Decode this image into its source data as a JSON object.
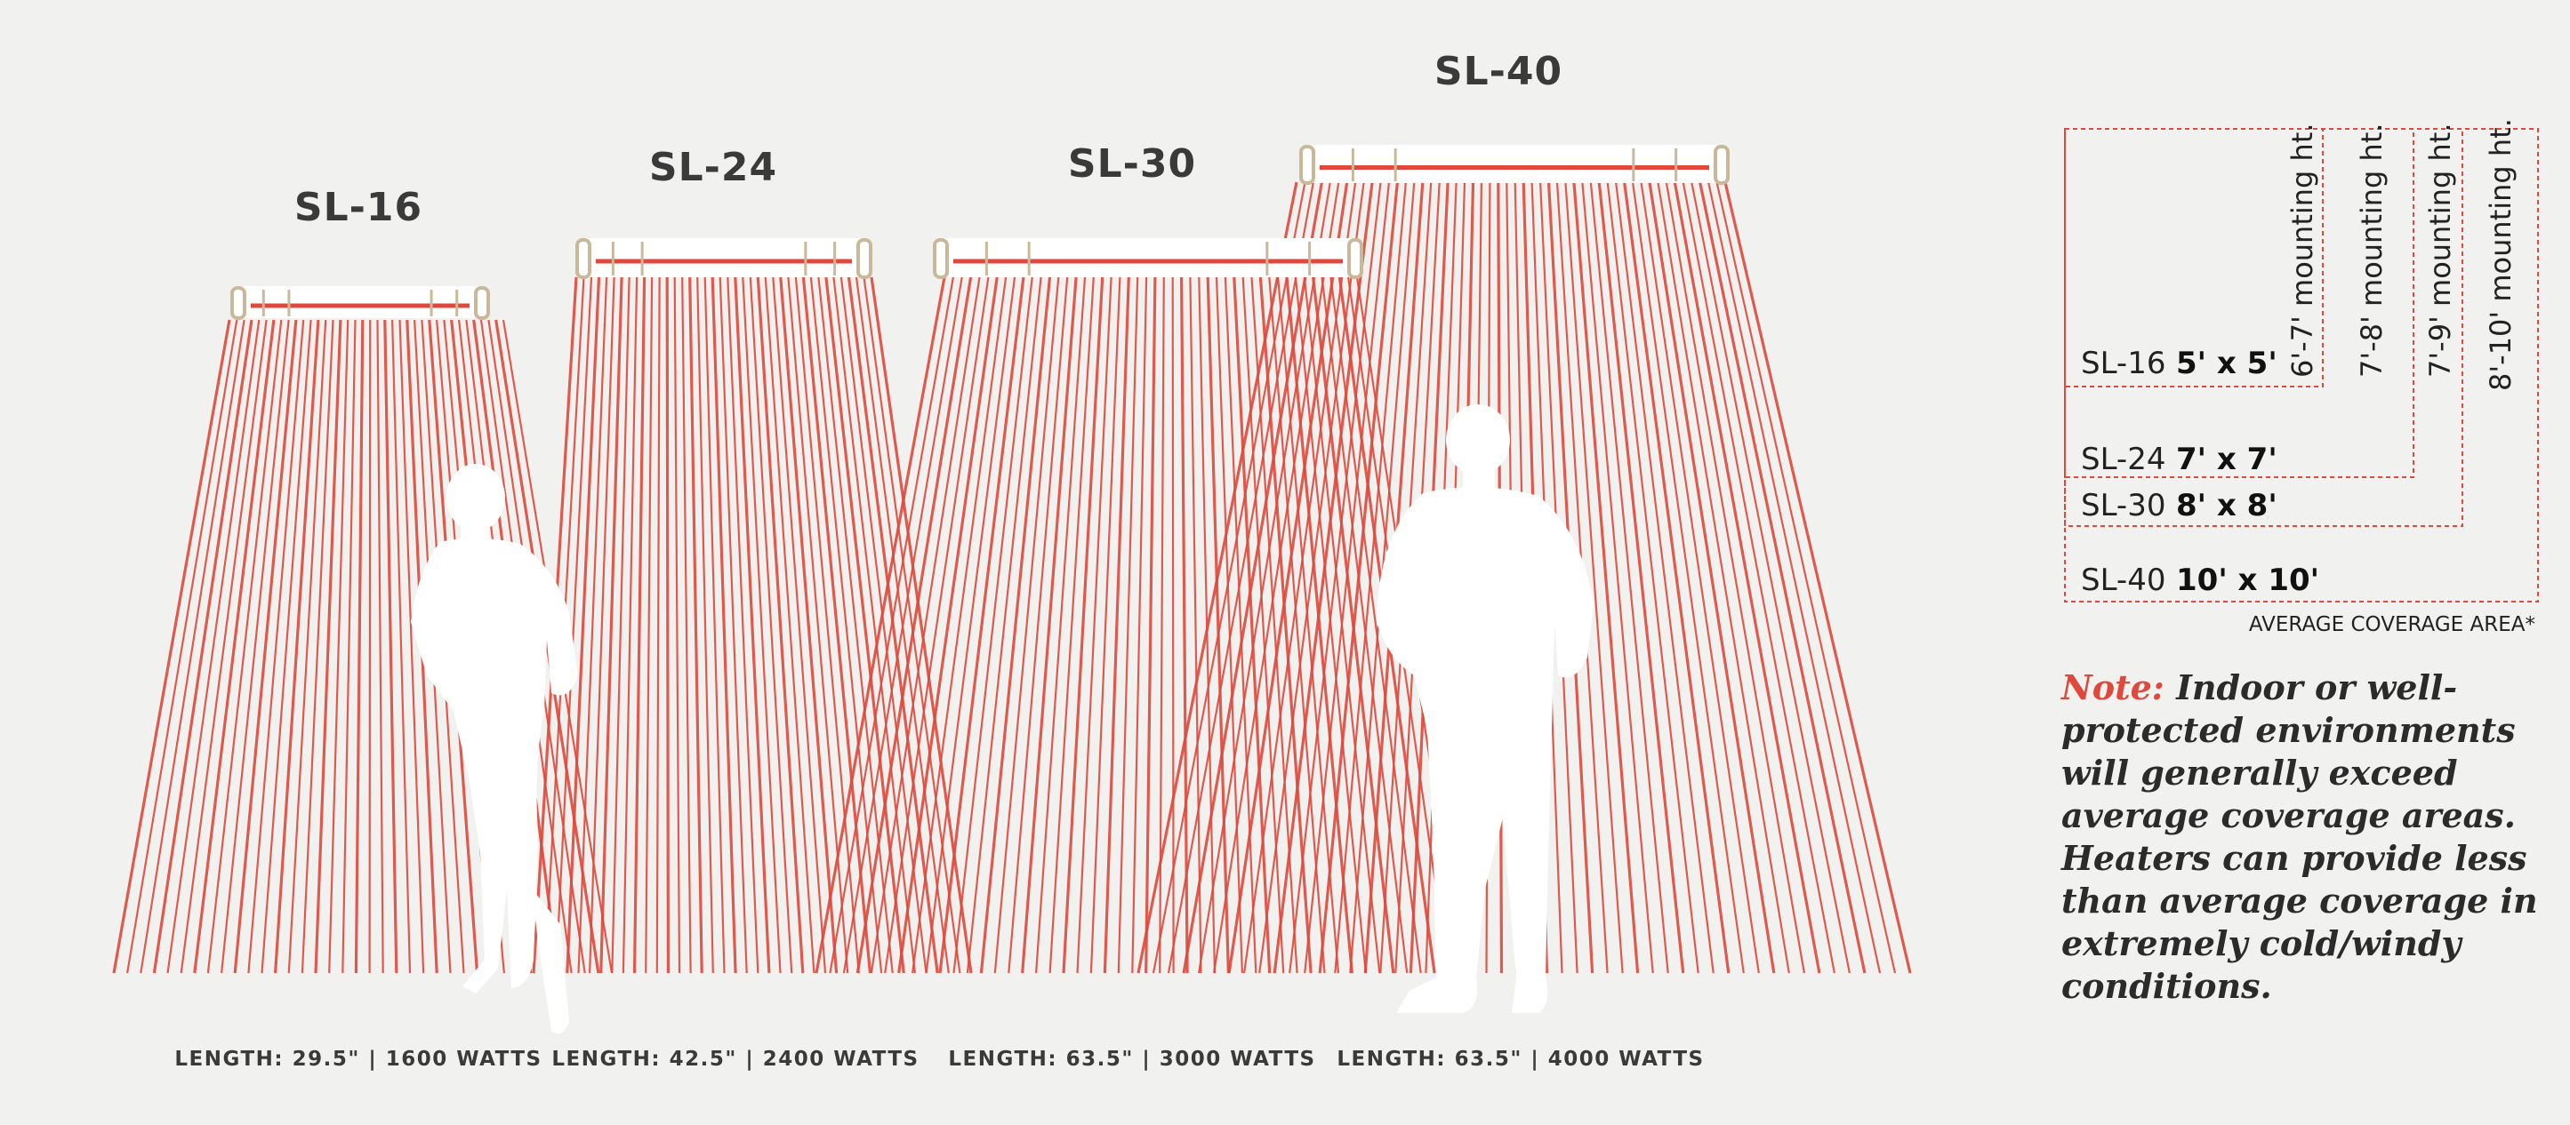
{
  "colors": {
    "ray": "#e0483c",
    "background": "#f1f2ef",
    "heater_body": "#ffffff",
    "heater_cap": "#c9b99a",
    "legend_border": "#e0483c",
    "silhouette": "#ffffff"
  },
  "heaters": [
    {
      "model": "SL-16",
      "spec": "LENGTH: 29.5\" | 1600 WATTS"
    },
    {
      "model": "SL-24",
      "spec": "LENGTH: 42.5\" | 2400 WATTS"
    },
    {
      "model": "SL-30",
      "spec": "LENGTH: 63.5\" | 3000 WATTS"
    },
    {
      "model": "SL-40",
      "spec": "LENGTH: 63.5\" | 4000 WATTS"
    }
  ],
  "legend": {
    "rows": [
      {
        "model": "SL-16",
        "area": "5' x 5'",
        "height": "6'-7' mounting ht."
      },
      {
        "model": "SL-24",
        "area": "7' x 7'",
        "height": "7'-8' mounting ht."
      },
      {
        "model": "SL-30",
        "area": "8' x 8'",
        "height": "7'-9' mounting ht."
      },
      {
        "model": "SL-40",
        "area": "10' x 10'",
        "height": "8'-10' mounting ht."
      }
    ],
    "caption": "AVERAGE COVERAGE AREA*"
  },
  "note": {
    "label": "Note:",
    "text": "Indoor or well-protected environments will generally exceed average coverage areas. Heaters can provide less than average coverage in extremely cold/windy conditions."
  }
}
